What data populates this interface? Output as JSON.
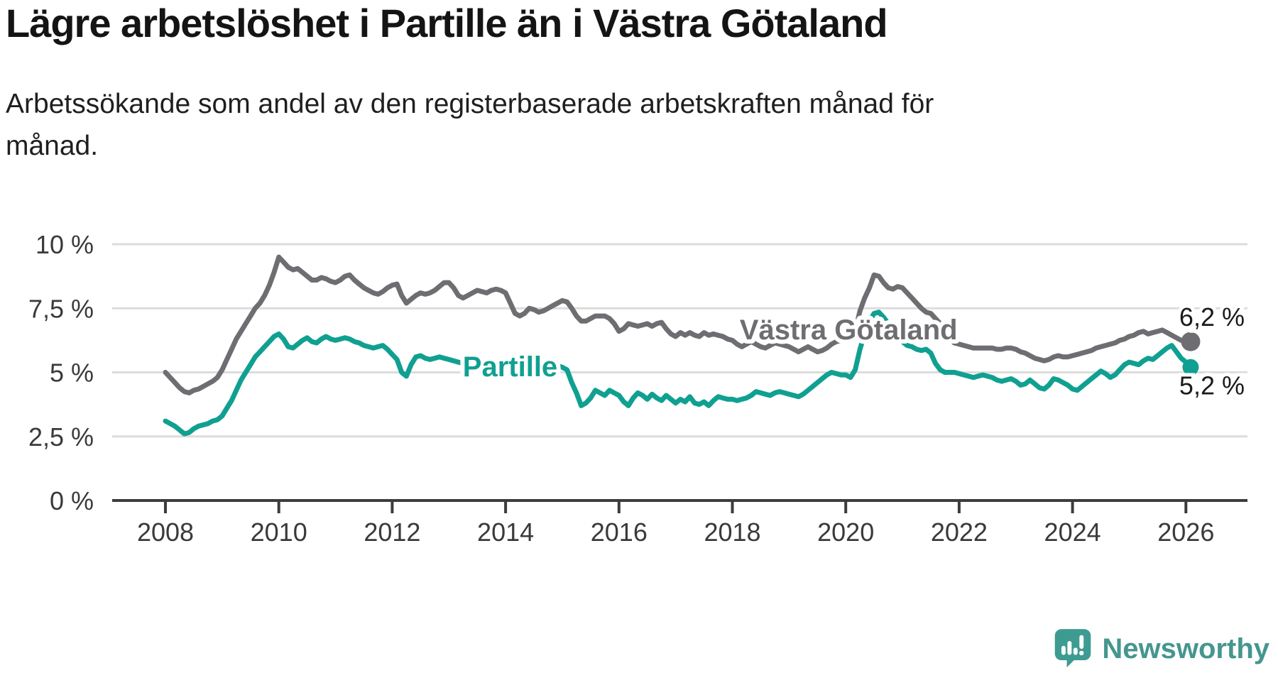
{
  "header": {
    "title": "Lägre arbetslöshet i Partille än i Västra Götaland",
    "subtitle": "Arbetssökande som andel av den registerbaserade arbetskraften månad för månad."
  },
  "footer": {
    "brand": "Newsworthy",
    "logo_icon": "newsworthy-speech-bubble-bar-chart-icon"
  },
  "colors": {
    "partille_line": "#10a091",
    "vastra_gotaland_line": "#6e6e72",
    "end_value_label": "#1a1a1a",
    "axis_text": "#3a3a3a",
    "gridline": "#dcdcdc",
    "axis_line": "#3c3c3c",
    "label_halo": "#ffffff",
    "brand_teal": "#45968e",
    "background": "#ffffff"
  },
  "chart_data": {
    "type": "line",
    "title": "Lägre arbetslöshet i Partille än i Västra Götaland",
    "subtitle": "Arbetssökande som andel av den registerbaserade arbetskraften månad för månad.",
    "x_unit": "month",
    "x_start_year": 2008,
    "x_start_label": "2008-01",
    "x_end_label": "2026-02",
    "x_tick_labels": [
      "2008",
      "2010",
      "2012",
      "2014",
      "2016",
      "2018",
      "2020",
      "2022",
      "2024",
      "2026"
    ],
    "x_tick_values": [
      2008,
      2010,
      2012,
      2014,
      2016,
      2018,
      2020,
      2022,
      2024,
      2026
    ],
    "y_tick_labels": [
      "0 %",
      "2,5 %",
      "5 %",
      "7,5 %",
      "10 %"
    ],
    "y_tick_values": [
      0,
      2.5,
      5,
      7.5,
      10
    ],
    "ylim": [
      0,
      10
    ],
    "grid": "horizontal",
    "legend_position": "inline-labels",
    "series": [
      {
        "name": "Västra Götaland",
        "color": "#6e6e72",
        "end_label": "6,2 %",
        "end_value": 6.2,
        "label_x": 2020.05,
        "label_y": 6.68,
        "values": [
          5.0,
          4.8,
          4.6,
          4.4,
          4.25,
          4.2,
          4.3,
          4.35,
          4.45,
          4.55,
          4.65,
          4.8,
          5.1,
          5.5,
          5.9,
          6.3,
          6.6,
          6.9,
          7.2,
          7.5,
          7.7,
          8.0,
          8.4,
          8.9,
          9.5,
          9.3,
          9.1,
          9.0,
          9.05,
          8.9,
          8.75,
          8.6,
          8.6,
          8.7,
          8.65,
          8.55,
          8.5,
          8.6,
          8.75,
          8.8,
          8.6,
          8.45,
          8.3,
          8.2,
          8.1,
          8.05,
          8.15,
          8.3,
          8.4,
          8.45,
          8.0,
          7.7,
          7.85,
          8.0,
          8.1,
          8.05,
          8.1,
          8.2,
          8.35,
          8.5,
          8.5,
          8.3,
          8.0,
          7.9,
          8.0,
          8.1,
          8.2,
          8.15,
          8.1,
          8.2,
          8.25,
          8.2,
          8.1,
          7.7,
          7.3,
          7.2,
          7.3,
          7.5,
          7.45,
          7.35,
          7.4,
          7.5,
          7.6,
          7.7,
          7.8,
          7.75,
          7.5,
          7.2,
          7.0,
          7.0,
          7.1,
          7.2,
          7.2,
          7.2,
          7.1,
          6.9,
          6.6,
          6.7,
          6.9,
          6.85,
          6.8,
          6.85,
          6.9,
          6.8,
          6.9,
          6.95,
          6.7,
          6.5,
          6.4,
          6.55,
          6.45,
          6.55,
          6.45,
          6.4,
          6.55,
          6.45,
          6.5,
          6.45,
          6.4,
          6.3,
          6.25,
          6.1,
          6.0,
          6.1,
          6.2,
          6.1,
          6.0,
          5.95,
          6.05,
          6.15,
          6.1,
          6.05,
          6.0,
          5.9,
          5.8,
          5.9,
          6.0,
          5.9,
          5.8,
          5.85,
          5.95,
          6.1,
          6.2,
          6.25,
          6.3,
          6.25,
          6.6,
          7.4,
          7.9,
          8.3,
          8.8,
          8.75,
          8.5,
          8.3,
          8.25,
          8.35,
          8.3,
          8.1,
          7.9,
          7.7,
          7.5,
          7.35,
          7.3,
          7.1,
          6.9,
          6.6,
          6.3,
          6.15,
          6.1,
          6.05,
          6.0,
          5.95,
          5.95,
          5.95,
          5.95,
          5.95,
          5.9,
          5.9,
          5.95,
          5.95,
          5.9,
          5.8,
          5.75,
          5.65,
          5.55,
          5.5,
          5.45,
          5.5,
          5.6,
          5.65,
          5.6,
          5.6,
          5.65,
          5.7,
          5.75,
          5.8,
          5.85,
          5.95,
          6.0,
          6.05,
          6.1,
          6.15,
          6.25,
          6.3,
          6.4,
          6.45,
          6.55,
          6.6,
          6.5,
          6.55,
          6.6,
          6.65,
          6.55,
          6.45,
          6.35,
          6.25,
          6.2,
          6.2
        ]
      },
      {
        "name": "Partille",
        "color": "#10a091",
        "end_label": "5,2 %",
        "end_value": 5.2,
        "label_x": 2014.08,
        "label_y": 5.24,
        "values": [
          3.1,
          3.0,
          2.9,
          2.75,
          2.6,
          2.65,
          2.8,
          2.9,
          2.95,
          3.0,
          3.1,
          3.15,
          3.3,
          3.6,
          3.9,
          4.3,
          4.7,
          5.0,
          5.3,
          5.6,
          5.8,
          6.0,
          6.2,
          6.4,
          6.5,
          6.3,
          6.0,
          5.95,
          6.1,
          6.25,
          6.35,
          6.2,
          6.15,
          6.3,
          6.4,
          6.3,
          6.25,
          6.3,
          6.35,
          6.3,
          6.2,
          6.15,
          6.05,
          6.0,
          5.95,
          6.0,
          6.05,
          5.9,
          5.7,
          5.5,
          5.0,
          4.85,
          5.3,
          5.6,
          5.65,
          5.55,
          5.5,
          5.55,
          5.6,
          5.55,
          5.5,
          5.45,
          5.4,
          5.35,
          5.4,
          5.45,
          5.4,
          5.35,
          5.3,
          5.35,
          5.4,
          5.35,
          5.3,
          5.25,
          5.2,
          5.15,
          5.2,
          5.25,
          5.2,
          5.15,
          5.1,
          5.15,
          5.2,
          5.25,
          5.2,
          5.1,
          4.6,
          4.2,
          3.7,
          3.8,
          4.0,
          4.3,
          4.2,
          4.1,
          4.3,
          4.2,
          4.1,
          3.85,
          3.7,
          4.0,
          4.2,
          4.1,
          3.95,
          4.15,
          4.0,
          3.9,
          4.1,
          3.95,
          3.8,
          3.95,
          3.85,
          4.05,
          3.8,
          3.75,
          3.85,
          3.7,
          3.9,
          4.05,
          4.0,
          3.95,
          3.95,
          3.9,
          3.95,
          4.0,
          4.1,
          4.25,
          4.2,
          4.15,
          4.1,
          4.2,
          4.25,
          4.2,
          4.15,
          4.1,
          4.05,
          4.15,
          4.3,
          4.45,
          4.6,
          4.75,
          4.9,
          5.0,
          4.95,
          4.9,
          4.9,
          4.8,
          5.1,
          5.9,
          6.5,
          7.0,
          7.3,
          7.35,
          7.15,
          6.9,
          6.6,
          6.4,
          6.2,
          6.05,
          6.0,
          5.9,
          5.85,
          5.9,
          5.75,
          5.35,
          5.1,
          5.0,
          5.0,
          5.0,
          4.95,
          4.9,
          4.85,
          4.8,
          4.85,
          4.9,
          4.85,
          4.8,
          4.7,
          4.65,
          4.7,
          4.75,
          4.65,
          4.5,
          4.55,
          4.7,
          4.55,
          4.4,
          4.35,
          4.5,
          4.75,
          4.7,
          4.6,
          4.5,
          4.35,
          4.3,
          4.45,
          4.6,
          4.75,
          4.9,
          5.05,
          4.95,
          4.8,
          4.9,
          5.1,
          5.3,
          5.4,
          5.35,
          5.3,
          5.45,
          5.55,
          5.5,
          5.65,
          5.8,
          5.95,
          6.05,
          5.8,
          5.55,
          5.4,
          5.2
        ]
      }
    ]
  }
}
